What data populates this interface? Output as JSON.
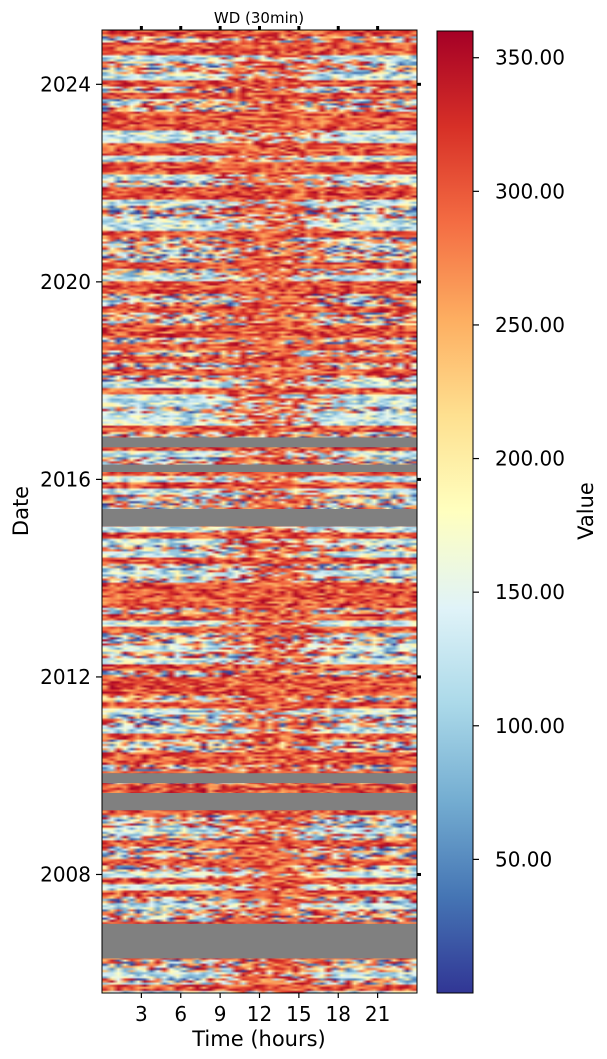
{
  "chart_data": {
    "type": "heatmap",
    "title": "WD (30min)",
    "xlabel": "Time (hours)",
    "ylabel": "Date",
    "x_ticks": [
      3,
      6,
      9,
      12,
      15,
      18,
      21
    ],
    "x_range": [
      0,
      24
    ],
    "y_ticks": [
      2008,
      2012,
      2016,
      2020,
      2024
    ],
    "y_range": [
      2005.6,
      2025.1
    ],
    "colorbar": {
      "label": "Value",
      "range": [
        0,
        360
      ],
      "ticks": [
        50,
        100,
        150,
        200,
        250,
        300,
        350
      ],
      "tick_labels": [
        "50.00",
        "100.00",
        "150.00",
        "200.00",
        "250.00",
        "300.00",
        "350.00"
      ],
      "colormap": "RdYlBu_r",
      "colors": [
        "#313695",
        "#4575b4",
        "#74add1",
        "#abd9e9",
        "#e0f3f8",
        "#ffffbf",
        "#fee090",
        "#fdae61",
        "#f46d43",
        "#d73027",
        "#a50026"
      ]
    },
    "missing_color": "#808080",
    "missing_periods": [
      {
        "from": 2006.3,
        "to": 2007.0
      },
      {
        "from": 2009.3,
        "to": 2009.65
      },
      {
        "from": 2009.85,
        "to": 2010.05
      },
      {
        "from": 2015.05,
        "to": 2015.4
      },
      {
        "from": 2016.15,
        "to": 2016.3
      },
      {
        "from": 2016.65,
        "to": 2016.85
      }
    ],
    "pattern": "daytime hours (about 09:00-17:00) dominated by 250-350; night hours mixed 0-360"
  }
}
